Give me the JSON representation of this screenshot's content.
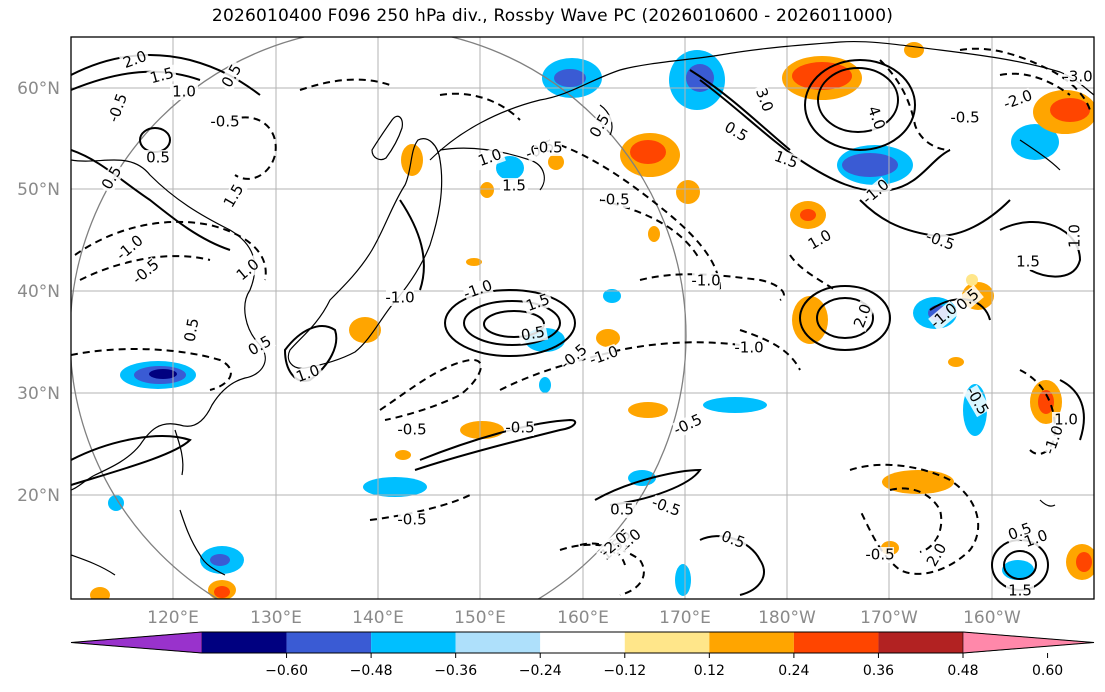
{
  "title": "2026010400 F096 250 hPa div., Rossby Wave PC (2026010600 - 2026011000)",
  "lat_labels": [
    "60°N",
    "50°N",
    "40°N",
    "30°N",
    "20°N"
  ],
  "lon_labels": [
    "120°E",
    "130°E",
    "140°E",
    "150°E",
    "160°E",
    "170°E",
    "180°W",
    "170°W",
    "160°W"
  ],
  "colorbar": {
    "tick_labels": [
      "−0.60",
      "−0.48",
      "−0.36",
      "−0.24",
      "−0.12",
      "0.12",
      "0.24",
      "0.36",
      "0.48",
      "0.60"
    ],
    "colors": [
      "#9932cc",
      "#000080",
      "#3a5bd4",
      "#00bfff",
      "#aee0fb",
      "#ffffff",
      "#ffe68a",
      "#ffa500",
      "#ff4500",
      "#b22222",
      "#ff88aa"
    ]
  },
  "contour_labels": [
    {
      "text": "2.0"
    },
    {
      "text": "1.5"
    },
    {
      "text": "0.5"
    },
    {
      "text": "1.0"
    },
    {
      "text": "-0.5"
    },
    {
      "text": "-0.5"
    },
    {
      "text": "0.5"
    },
    {
      "text": "0.5"
    },
    {
      "text": "1.5"
    },
    {
      "text": "-1.0"
    },
    {
      "text": "-0.5"
    },
    {
      "text": "1.0"
    },
    {
      "text": "0.5"
    },
    {
      "text": "0.5"
    },
    {
      "text": "1.0"
    },
    {
      "text": "1.0"
    },
    {
      "text": "1.5"
    },
    {
      "text": "-0.5"
    },
    {
      "text": "0.5"
    },
    {
      "text": "-0.5"
    },
    {
      "text": "-1.0"
    },
    {
      "text": "-1.0"
    },
    {
      "text": "-1.0"
    },
    {
      "text": "-1.0"
    },
    {
      "text": "0.5"
    },
    {
      "text": "-0.5"
    },
    {
      "text": "-0.5"
    },
    {
      "text": "-0.5"
    },
    {
      "text": "0.5"
    },
    {
      "text": "-0.5"
    },
    {
      "text": "-0.5"
    },
    {
      "text": "0.5"
    },
    {
      "text": "1.0"
    },
    {
      "text": "1.5"
    },
    {
      "text": "-0.5"
    },
    {
      "text": "3.0"
    },
    {
      "text": "4.0"
    },
    {
      "text": "0.5"
    },
    {
      "text": "1.5"
    },
    {
      "text": "-1.0"
    },
    {
      "text": "1.0"
    },
    {
      "text": "-0.5"
    },
    {
      "text": "1.0"
    },
    {
      "text": "1.5"
    },
    {
      "text": "2.0"
    },
    {
      "text": "1.5"
    },
    {
      "text": "-1.0"
    },
    {
      "text": "0.5"
    },
    {
      "text": "-0.5"
    },
    {
      "text": "-0.5"
    },
    {
      "text": "1.0"
    },
    {
      "text": "-1.0"
    },
    {
      "text": "2.0"
    },
    {
      "text": "0.5"
    },
    {
      "text": "1.0"
    },
    {
      "text": "1.5"
    },
    {
      "text": "-3.0"
    },
    {
      "text": "-2.0"
    },
    {
      "text": "-0.5"
    },
    {
      "text": "0.5"
    },
    {
      "text": "-2.0"
    },
    {
      "text": "-1.0"
    },
    {
      "text": "-0.5"
    }
  ]
}
